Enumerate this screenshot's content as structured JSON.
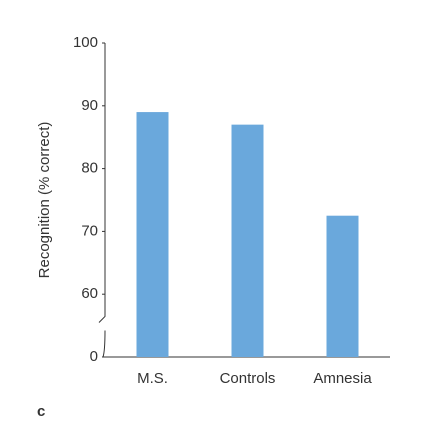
{
  "chart_data": {
    "type": "bar",
    "y_label": "Recognition (% correct)",
    "panel_label": "c",
    "categories": [
      "M.S.",
      "Controls",
      "Amnesia"
    ],
    "values": [
      89,
      87,
      72.5
    ],
    "color": "#6aa8dc",
    "ylim": [
      0,
      100
    ],
    "yticks": [
      0,
      60,
      70,
      80,
      90,
      100
    ],
    "axis_break": true
  }
}
